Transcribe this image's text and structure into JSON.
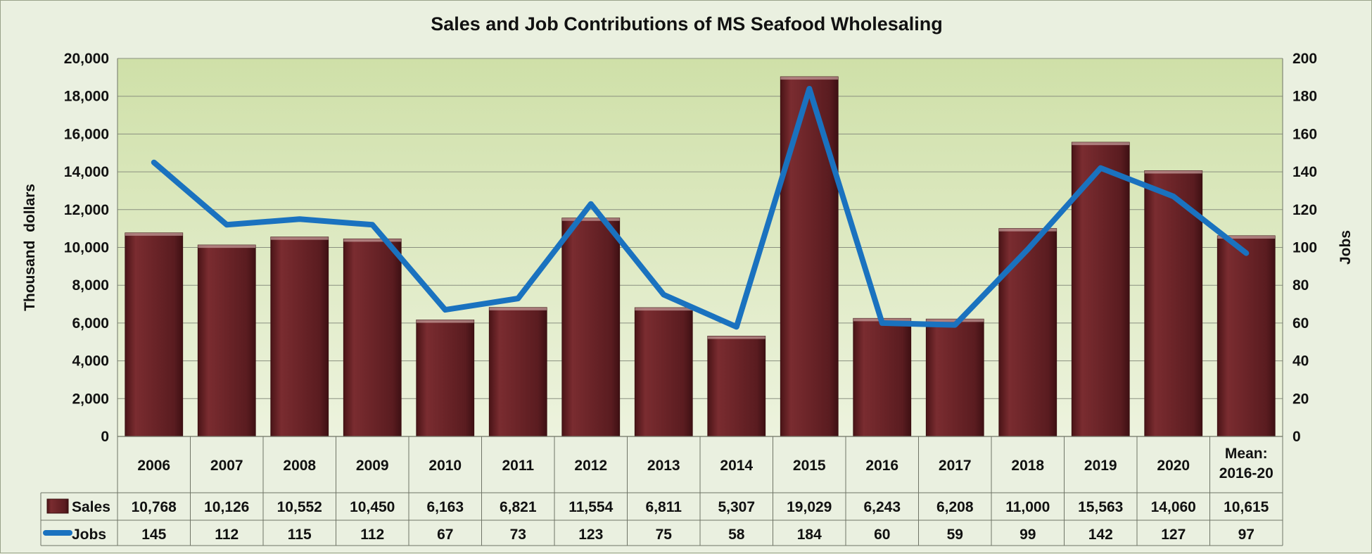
{
  "chart_data": {
    "type": "bar",
    "title": "Sales and Job Contributions of MS Seafood Wholesaling",
    "categories": [
      "2006",
      "2007",
      "2008",
      "2009",
      "2010",
      "2011",
      "2012",
      "2013",
      "2014",
      "2015",
      "2016",
      "2017",
      "2018",
      "2019",
      "2020",
      "Mean:\n2016-20"
    ],
    "series": [
      {
        "name": "Sales",
        "type": "bar",
        "axis": "left",
        "values": [
          10768,
          10126,
          10552,
          10450,
          6163,
          6821,
          11554,
          6811,
          5307,
          19029,
          6243,
          6208,
          11000,
          15563,
          14060,
          10615
        ],
        "labels": [
          "10,768",
          "10,126",
          "10,552",
          "10,450",
          "6,163",
          "6,821",
          "11,554",
          "6,811",
          "5,307",
          "19,029",
          "6,243",
          "6,208",
          "11,000",
          "15,563",
          "14,060",
          "10,615"
        ],
        "color": "#6b2428"
      },
      {
        "name": "Jobs",
        "type": "line",
        "axis": "right",
        "values": [
          145,
          112,
          115,
          112,
          67,
          73,
          123,
          75,
          58,
          184,
          60,
          59,
          99,
          142,
          127,
          97
        ],
        "labels": [
          "145",
          "112",
          "115",
          "112",
          "67",
          "73",
          "123",
          "75",
          "58",
          "184",
          "60",
          "59",
          "99",
          "142",
          "127",
          "97"
        ],
        "color": "#1a72bf"
      }
    ],
    "ylabel": "Thousand  dollars",
    "y2label": "Jobs",
    "ylim": [
      0,
      20000
    ],
    "y2lim": [
      0,
      200
    ],
    "yticks": [
      "0",
      "2,000",
      "4,000",
      "6,000",
      "8,000",
      "10,000",
      "12,000",
      "14,000",
      "16,000",
      "18,000",
      "20,000"
    ],
    "y2ticks": [
      "0",
      "20",
      "40",
      "60",
      "80",
      "100",
      "120",
      "140",
      "160",
      "180",
      "200"
    ],
    "grid": true,
    "data_table": true,
    "colors": {
      "background": "#eaf0e0",
      "plot_top": "#cfe0a8",
      "plot_bottom": "#edf3de",
      "gridline": "#8a8f80"
    }
  }
}
